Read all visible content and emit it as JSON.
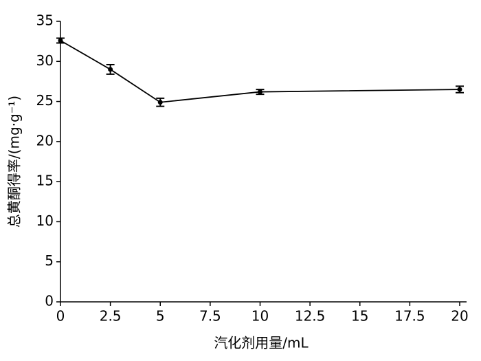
{
  "chart_data": {
    "type": "line",
    "x_label": "汽化剂用量/mL",
    "y_label": "总黄酮得率/(mg·g⁻¹)",
    "x": [
      0,
      2.5,
      5,
      10,
      20
    ],
    "values": [
      32.6,
      29.0,
      24.9,
      26.2,
      26.5
    ],
    "errors": [
      0.3,
      0.6,
      0.5,
      0.3,
      0.4
    ],
    "color": "#000000",
    "xlim": [
      0,
      20
    ],
    "xticks": [
      0,
      2.5,
      5,
      7.5,
      10,
      12.5,
      15,
      17.5,
      20
    ],
    "ylim": [
      0,
      35
    ],
    "yticks": [
      0,
      5,
      10,
      15,
      20,
      25,
      30,
      35
    ]
  }
}
